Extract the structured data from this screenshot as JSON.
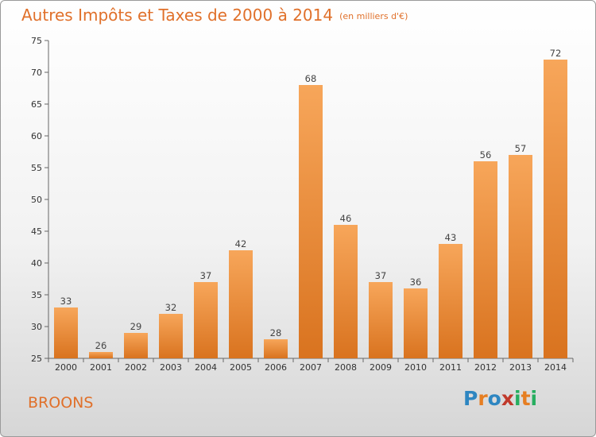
{
  "title": {
    "main": "Autres Impôts et Taxes de 2000 à 2014",
    "sub": "(en milliers d'€)"
  },
  "footer": {
    "commune": "BROONS",
    "logo_text": "Proxiti"
  },
  "colors": {
    "title": "#e0702a",
    "bar_light": "#f7a65a",
    "bar_dark": "#d9731f",
    "logo": [
      "#2e86c1",
      "#e67e22",
      "#2e86c1",
      "#c0392b",
      "#27ae60",
      "#e67e22",
      "#27ae60"
    ]
  },
  "chart_data": {
    "type": "bar",
    "categories": [
      "2000",
      "2001",
      "2002",
      "2003",
      "2004",
      "2005",
      "2006",
      "2007",
      "2008",
      "2009",
      "2010",
      "2011",
      "2012",
      "2013",
      "2014"
    ],
    "values": [
      33,
      26,
      29,
      32,
      37,
      42,
      28,
      68,
      46,
      37,
      36,
      43,
      56,
      57,
      72
    ],
    "ylim": [
      25,
      75
    ],
    "yticks": [
      25,
      30,
      35,
      40,
      45,
      50,
      55,
      60,
      65,
      70,
      75
    ],
    "grid": false,
    "data_labels": true
  }
}
